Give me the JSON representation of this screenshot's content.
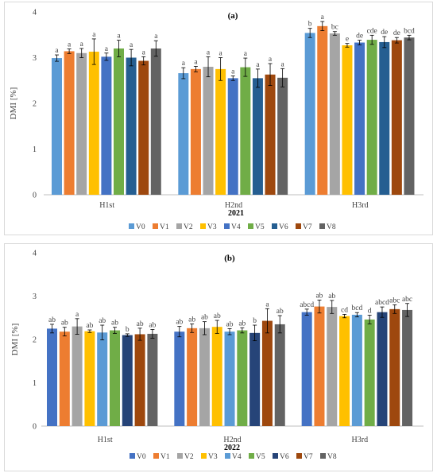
{
  "colors": {
    "axis": "#bfbfbf",
    "text": "#404040",
    "errorbar": "#000000"
  },
  "chart_data": [
    {
      "type": "bar",
      "title": "(a)",
      "ylabel": "DMI [%]",
      "xlabel": "2021",
      "ylim": [
        0,
        4
      ],
      "yticks": [
        0,
        1,
        2,
        3,
        4
      ],
      "grid": false,
      "legend_position": "bottom",
      "categories": [
        "H1st",
        "H2nd",
        "H3rd"
      ],
      "series": [
        {
          "name": "V0",
          "color": "#5b9bd5",
          "values": [
            2.99,
            2.66,
            3.54
          ],
          "errors": [
            0.07,
            0.12,
            0.1
          ],
          "labels": [
            "a",
            "a",
            "b"
          ]
        },
        {
          "name": "V1",
          "color": "#ed7d31",
          "values": [
            3.14,
            2.75,
            3.69
          ],
          "errors": [
            0.05,
            0.06,
            0.1
          ],
          "labels": [
            "a",
            "a",
            "a"
          ]
        },
        {
          "name": "V2",
          "color": "#a5a5a5",
          "values": [
            3.1,
            2.8,
            3.53
          ],
          "errors": [
            0.1,
            0.22,
            0.04
          ],
          "labels": [
            "a",
            "a",
            "bc"
          ]
        },
        {
          "name": "V3",
          "color": "#ffc000",
          "values": [
            3.13,
            2.75,
            3.27
          ],
          "errors": [
            0.28,
            0.25,
            0.04
          ],
          "labels": [
            "a",
            "a",
            "e"
          ]
        },
        {
          "name": "V4",
          "color": "#4472c4",
          "values": [
            3.02,
            2.55,
            3.33
          ],
          "errors": [
            0.08,
            0.05,
            0.05
          ],
          "labels": [
            "a",
            "a",
            "de"
          ]
        },
        {
          "name": "V5",
          "color": "#70ad47",
          "values": [
            3.2,
            2.79,
            3.39
          ],
          "errors": [
            0.18,
            0.2,
            0.1
          ],
          "labels": [
            "a",
            "a",
            "cde"
          ]
        },
        {
          "name": "V6",
          "color": "#255e91",
          "values": [
            3.0,
            2.55,
            3.34
          ],
          "errors": [
            0.18,
            0.2,
            0.12
          ],
          "labels": [
            "a",
            "a",
            "de"
          ]
        },
        {
          "name": "V7",
          "color": "#9e480e",
          "values": [
            2.93,
            2.63,
            3.38
          ],
          "errors": [
            0.09,
            0.24,
            0.06
          ],
          "labels": [
            "a",
            "a",
            "de"
          ]
        },
        {
          "name": "V8",
          "color": "#636363",
          "values": [
            3.2,
            2.56,
            3.44
          ],
          "errors": [
            0.17,
            0.2,
            0.05
          ],
          "labels": [
            "a",
            "a",
            "bcd"
          ]
        }
      ]
    },
    {
      "type": "bar",
      "title": "(b)",
      "ylabel": "DMI [%]",
      "xlabel": "2022",
      "ylim": [
        0,
        4
      ],
      "yticks": [
        0,
        1,
        2,
        3,
        4
      ],
      "grid": false,
      "legend_position": "bottom",
      "categories": [
        "H1st",
        "H2nd",
        "H3rd"
      ],
      "series": [
        {
          "name": "V0",
          "color": "#4472c4",
          "values": [
            2.25,
            2.18,
            2.63
          ],
          "errors": [
            0.1,
            0.12,
            0.07
          ],
          "labels": [
            "ab",
            "ab",
            "abcd"
          ]
        },
        {
          "name": "V1",
          "color": "#ed7d31",
          "values": [
            2.18,
            2.26,
            2.76
          ],
          "errors": [
            0.1,
            0.1,
            0.15
          ],
          "labels": [
            "ab",
            "ab",
            "ab"
          ]
        },
        {
          "name": "V2",
          "color": "#a5a5a5",
          "values": [
            2.3,
            2.26,
            2.75
          ],
          "errors": [
            0.18,
            0.15,
            0.15
          ],
          "labels": [
            "a",
            "ab",
            "ab"
          ]
        },
        {
          "name": "V3",
          "color": "#ffc000",
          "values": [
            2.19,
            2.29,
            2.54
          ],
          "errors": [
            0.03,
            0.15,
            0.04
          ],
          "labels": [
            "ab",
            "ab",
            "cd"
          ]
        },
        {
          "name": "V4",
          "color": "#5b9bd5",
          "values": [
            2.16,
            2.18,
            2.57
          ],
          "errors": [
            0.17,
            0.07,
            0.05
          ],
          "labels": [
            "ab",
            "ab",
            "bcd"
          ]
        },
        {
          "name": "V5",
          "color": "#70ad47",
          "values": [
            2.21,
            2.21,
            2.46
          ],
          "errors": [
            0.07,
            0.06,
            0.1
          ],
          "labels": [
            "ab",
            "ab",
            "d"
          ]
        },
        {
          "name": "V6",
          "color": "#264478",
          "values": [
            2.1,
            2.15,
            2.63
          ],
          "errors": [
            0.03,
            0.18,
            0.12
          ],
          "labels": [
            "b",
            "b",
            "abcd"
          ]
        },
        {
          "name": "V7",
          "color": "#9e480e",
          "values": [
            2.12,
            2.43,
            2.7
          ],
          "errors": [
            0.14,
            0.28,
            0.1
          ],
          "labels": [
            "ab",
            "a",
            "abc"
          ]
        },
        {
          "name": "V8",
          "color": "#636363",
          "values": [
            2.13,
            2.35,
            2.68
          ],
          "errors": [
            0.1,
            0.2,
            0.15
          ],
          "labels": [
            "ab",
            "ab",
            "abc"
          ]
        }
      ]
    }
  ]
}
